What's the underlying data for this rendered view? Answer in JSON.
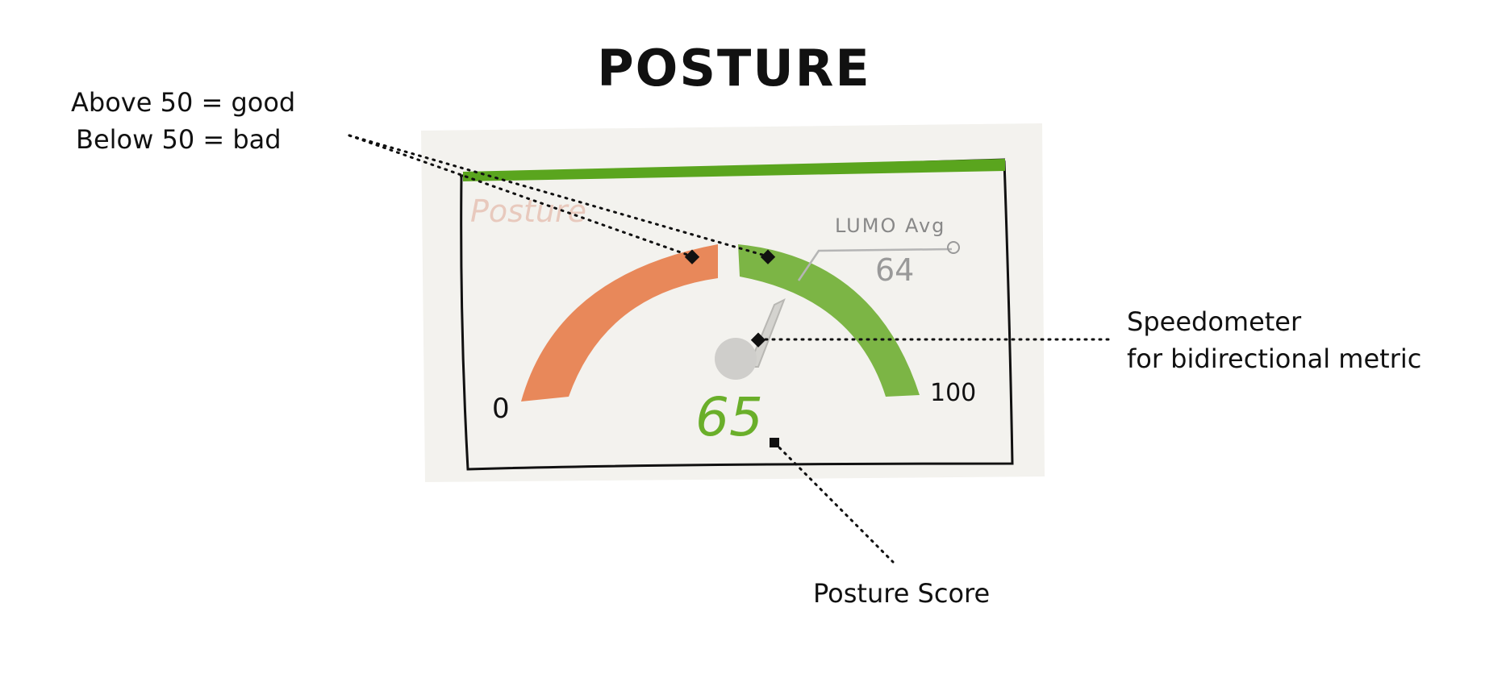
{
  "title": "POSTURE",
  "annotations": {
    "rule": {
      "line1": "Above 50 = good",
      "line2": "Below 50 = bad"
    },
    "speedometer": {
      "line1": "Speedometer",
      "line2": "for bidirectional metric"
    },
    "score": "Posture Score"
  },
  "widget": {
    "header_label": "Posture",
    "scale_min": "0",
    "scale_max": "100",
    "average_label": "LUMO Avg",
    "average_value": "64",
    "score_value": "65"
  },
  "colors": {
    "bad_arc": "#e8885a",
    "good_arc": "#7cb545",
    "header_bar": "#5aa51e",
    "score_text": "#6aaf2a",
    "card_bg": "#f3f2ee"
  },
  "icons": {
    "needle": "gauge-needle-icon",
    "marker": "annotation-marker-icon"
  }
}
